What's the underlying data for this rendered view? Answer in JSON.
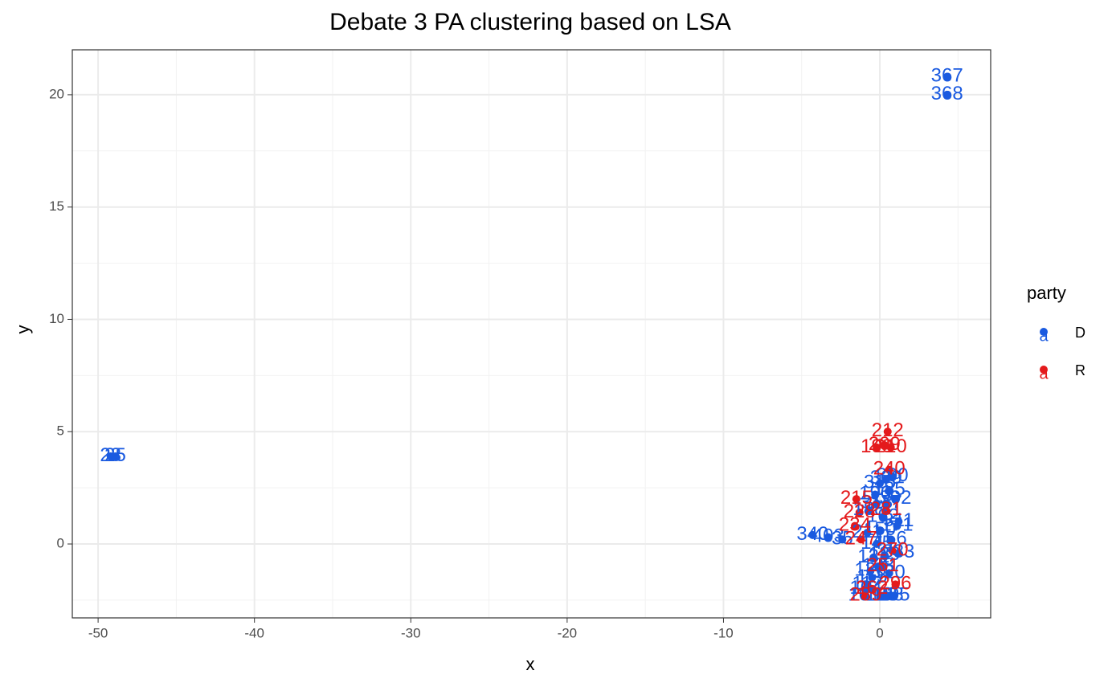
{
  "chart_data": {
    "type": "scatter",
    "title": "Debate 3 PA clustering based on LSA",
    "x_label": "x",
    "y_label": "y",
    "legend_title": "party",
    "xlim": [
      -51.65,
      7.09
    ],
    "ylim": [
      -3.29,
      22.0
    ],
    "xticks": [
      -50,
      -40,
      -30,
      -20,
      -10,
      0
    ],
    "yticks": [
      0,
      5,
      10,
      15,
      20
    ],
    "grid": true,
    "series": [
      {
        "name": "D",
        "color": "#1a5ae0",
        "x": [
          4.3,
          4.3,
          -49.2,
          -48.9,
          -4.3,
          -3.3,
          -2.4,
          -1.0,
          -0.8,
          -0.6,
          -0.4,
          -0.2,
          0,
          0.2,
          0.4,
          0.6,
          0.8,
          1.0,
          1.2,
          -0.9,
          -0.5,
          -0.1,
          0.3,
          0.7,
          1.1,
          -0.7,
          -0.3,
          0.1,
          0.5,
          0.9,
          -0.8,
          0.0,
          0.6,
          1.2,
          0.4,
          -0.2
        ],
        "y": [
          20.8,
          20.0,
          3.9,
          3.9,
          0.4,
          0.3,
          0.2,
          -2.3,
          -1.8,
          -1.2,
          -0.6,
          0,
          0.6,
          1.2,
          1.8,
          2.4,
          3.0,
          2.0,
          1.0,
          -2.0,
          -1.5,
          -1.0,
          -0.5,
          0.2,
          0.8,
          1.5,
          2.2,
          -2.3,
          -2.3,
          -2.3,
          0.5,
          2.7,
          -1.3,
          -0.4,
          2.9,
          1.8
        ],
        "labels": [
          "367",
          "368",
          "23",
          "25",
          "340",
          "403",
          "35",
          "101",
          "112",
          "120",
          "131",
          "145",
          "150",
          "162",
          "177",
          "185",
          "300",
          "302",
          "311",
          "104",
          "115",
          "128",
          "139",
          "156",
          "171",
          "188",
          "190",
          "193",
          "198",
          "205",
          "211",
          "315",
          "320",
          "333",
          "309",
          "318"
        ]
      },
      {
        "name": "R",
        "color": "#e41a1c",
        "x": [
          0.5,
          0.3,
          0.7,
          -0.2,
          0.6,
          -1.5,
          -1.3,
          -1.6,
          -1.2,
          0.2,
          -0.5,
          0.8,
          0.4,
          -0.9,
          1.0
        ],
        "y": [
          5.0,
          4.4,
          4.3,
          4.3,
          3.3,
          2.0,
          1.4,
          0.8,
          0.2,
          -1.0,
          -2.0,
          -0.3,
          1.5,
          -2.3,
          -1.8
        ],
        "labels": [
          "212",
          "209",
          "210",
          "199",
          "240",
          "215",
          "228",
          "234",
          "247",
          "251",
          "262",
          "270",
          "281",
          "289",
          "296"
        ]
      }
    ]
  }
}
